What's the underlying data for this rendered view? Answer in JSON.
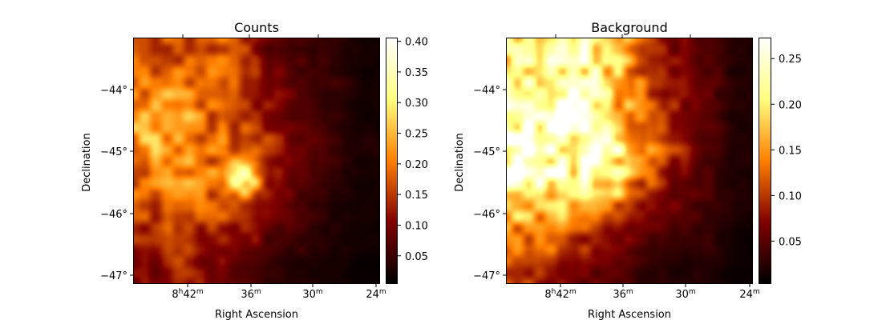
{
  "chart_data": [
    {
      "type": "heatmap",
      "title": "Counts",
      "xlabel": "Right Ascension",
      "ylabel": "Declination",
      "x_ticks": [
        [
          "8",
          "h",
          "42",
          "m"
        ],
        [
          "",
          "",
          "36",
          "m"
        ],
        [
          "",
          "",
          "30",
          "m"
        ],
        [
          "",
          "",
          "24",
          "m"
        ]
      ],
      "y_ticks": [
        "−44°",
        "−45°",
        "−46°",
        "−47°"
      ],
      "colormap": "afmhot",
      "colorbar": {
        "range": [
          0.004,
          0.406
        ],
        "ticks": [
          "0.05",
          "0.10",
          "0.15",
          "0.20",
          "0.25",
          "0.30",
          "0.35",
          "0.40"
        ]
      },
      "grid": false,
      "approx_values_8x8": [
        [
          0.17,
          0.17,
          0.18,
          0.16,
          0.08,
          0.06,
          0.04,
          0.02
        ],
        [
          0.19,
          0.22,
          0.19,
          0.15,
          0.1,
          0.07,
          0.05,
          0.02
        ],
        [
          0.22,
          0.23,
          0.19,
          0.14,
          0.11,
          0.07,
          0.04,
          0.02
        ],
        [
          0.24,
          0.22,
          0.2,
          0.17,
          0.14,
          0.08,
          0.05,
          0.03
        ],
        [
          0.19,
          0.21,
          0.19,
          0.38,
          0.12,
          0.07,
          0.04,
          0.02
        ],
        [
          0.16,
          0.18,
          0.17,
          0.15,
          0.1,
          0.06,
          0.03,
          0.02
        ],
        [
          0.13,
          0.17,
          0.12,
          0.12,
          0.07,
          0.05,
          0.03,
          0.02
        ],
        [
          0.1,
          0.14,
          0.1,
          0.06,
          0.04,
          0.03,
          0.02,
          0.01
        ]
      ]
    },
    {
      "type": "heatmap",
      "title": "Background",
      "xlabel": "Right Ascension",
      "ylabel": "Declination",
      "x_ticks": [
        [
          "8",
          "h",
          "42",
          "m"
        ],
        [
          "",
          "",
          "36",
          "m"
        ],
        [
          "",
          "",
          "30",
          "m"
        ],
        [
          "",
          "",
          "24",
          "m"
        ]
      ],
      "y_ticks": [
        "−44°",
        "−45°",
        "−46°",
        "−47°"
      ],
      "colormap": "afmhot",
      "colorbar": {
        "range": [
          0.003,
          0.273
        ],
        "ticks": [
          "0.05",
          "0.10",
          "0.15",
          "0.20",
          "0.25"
        ]
      },
      "grid": false,
      "approx_values_8x8": [
        [
          0.2,
          0.23,
          0.22,
          0.18,
          0.1,
          0.07,
          0.04,
          0.02
        ],
        [
          0.22,
          0.25,
          0.23,
          0.18,
          0.12,
          0.08,
          0.05,
          0.02
        ],
        [
          0.25,
          0.25,
          0.22,
          0.17,
          0.12,
          0.08,
          0.05,
          0.02
        ],
        [
          0.26,
          0.25,
          0.23,
          0.22,
          0.14,
          0.09,
          0.05,
          0.02
        ],
        [
          0.24,
          0.24,
          0.22,
          0.21,
          0.12,
          0.07,
          0.04,
          0.02
        ],
        [
          0.18,
          0.17,
          0.16,
          0.13,
          0.08,
          0.06,
          0.04,
          0.02
        ],
        [
          0.14,
          0.13,
          0.1,
          0.08,
          0.05,
          0.04,
          0.03,
          0.01
        ],
        [
          0.1,
          0.08,
          0.06,
          0.05,
          0.03,
          0.02,
          0.02,
          0.01
        ]
      ]
    }
  ]
}
